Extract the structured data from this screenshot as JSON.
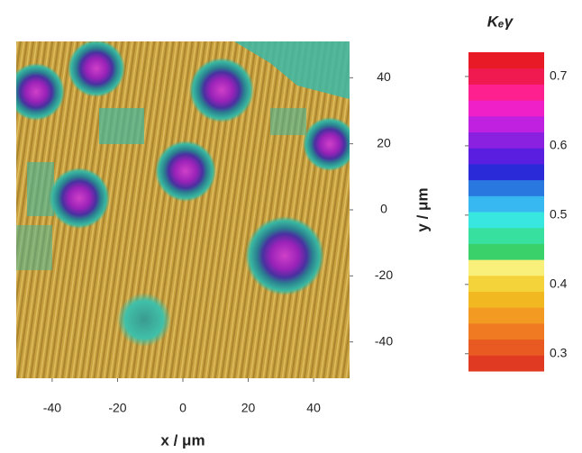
{
  "chart_data": {
    "type": "heatmap",
    "xlabel": "x / μm",
    "ylabel": "y / μm",
    "xlim": [
      -51,
      51
    ],
    "xticks": [
      -40,
      -20,
      0,
      20,
      40
    ],
    "ylim": [
      -51,
      51
    ],
    "yticks": [
      -40,
      -20,
      0,
      20,
      40
    ],
    "colorbar": {
      "label": "Kₑγ",
      "clim": [
        0.275,
        0.735
      ],
      "ticks": [
        0.3,
        0.4,
        0.5,
        0.6,
        0.7
      ],
      "colors": [
        "#e03a22",
        "#e85a22",
        "#f07a22",
        "#f29a22",
        "#f2b822",
        "#f4d23a",
        "#f8f07a",
        "#3ad06a",
        "#38e0a0",
        "#38e8e0",
        "#38b8f0",
        "#2878e0",
        "#2a2ad8",
        "#5a1ee0",
        "#8a20e0",
        "#c020e0",
        "#f020c8",
        "#ff2090",
        "#f01a50",
        "#e81a26"
      ]
    }
  }
}
